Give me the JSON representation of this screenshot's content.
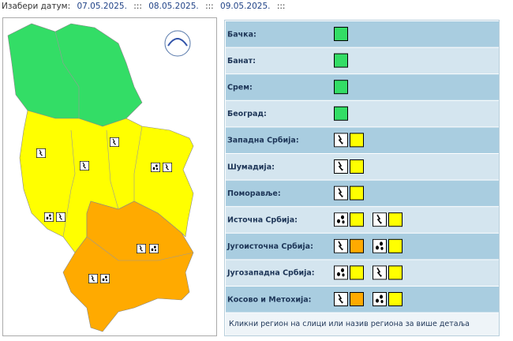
{
  "date_selector": {
    "label": "Изабери датум:",
    "dates": [
      "07.05.2025.",
      "08.05.2025.",
      "09.05.2025."
    ],
    "separator": ":::"
  },
  "regions": [
    {
      "name": "Бачка:",
      "warnings": [
        {
          "color": "#33dd66"
        }
      ]
    },
    {
      "name": "Банат:",
      "warnings": [
        {
          "color": "#33dd66"
        }
      ]
    },
    {
      "name": "Срем:",
      "warnings": [
        {
          "color": "#33dd66"
        }
      ]
    },
    {
      "name": "Београд:",
      "warnings": [
        {
          "color": "#33dd66"
        }
      ]
    },
    {
      "name": "Западна Србија:",
      "warnings": [
        {
          "phenomenon": "thunderstorm",
          "color": "#ffff00"
        }
      ]
    },
    {
      "name": "Шумадија:",
      "warnings": [
        {
          "phenomenon": "thunderstorm",
          "color": "#ffff00"
        }
      ]
    },
    {
      "name": "Поморавље:",
      "warnings": [
        {
          "phenomenon": "thunderstorm",
          "color": "#ffff00"
        }
      ]
    },
    {
      "name": "Источна Србија:",
      "warnings": [
        {
          "phenomenon": "hail",
          "color": "#ffff00"
        },
        {
          "phenomenon": "thunderstorm",
          "color": "#ffff00"
        }
      ]
    },
    {
      "name": "Југоисточна Србија:",
      "warnings": [
        {
          "phenomenon": "thunderstorm",
          "color": "#ffaa00"
        },
        {
          "phenomenon": "hail",
          "color": "#ffff00"
        }
      ]
    },
    {
      "name": "Југозападна Србија:",
      "warnings": [
        {
          "phenomenon": "hail",
          "color": "#ffff00"
        },
        {
          "phenomenon": "thunderstorm",
          "color": "#ffff00"
        }
      ]
    },
    {
      "name": "Косово и Метохија:",
      "warnings": [
        {
          "phenomenon": "thunderstorm",
          "color": "#ffaa00"
        },
        {
          "phenomenon": "hail",
          "color": "#ffff00"
        }
      ]
    }
  ],
  "footer": "Кликни регион на слици или назив региона за више детаља"
}
